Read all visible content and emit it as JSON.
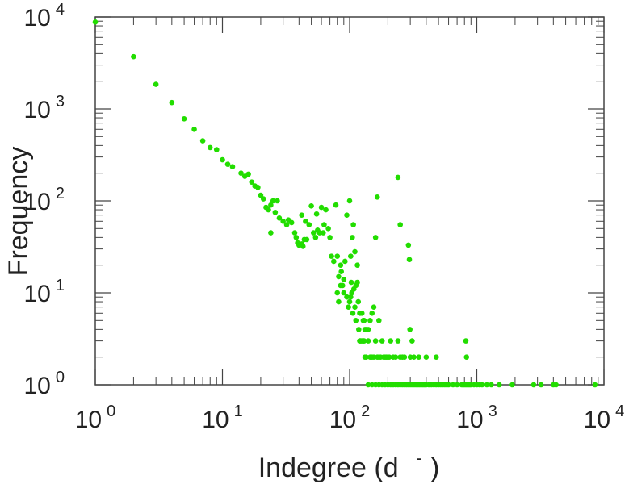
{
  "chart_data": {
    "type": "scatter",
    "title": "",
    "xlabel": "Indegree (d",
    "xlabel_superscript": "-",
    "xlabel_suffix": ")",
    "ylabel": "Frequency",
    "x_scale": "log",
    "y_scale": "log",
    "xlim": [
      1,
      10000
    ],
    "ylim": [
      1,
      10000
    ],
    "grid": false,
    "legend": "none",
    "marker_color": "#22dd00",
    "x_ticks": [
      {
        "base": "10",
        "exp": "0",
        "value": 1
      },
      {
        "base": "10",
        "exp": "1",
        "value": 10
      },
      {
        "base": "10",
        "exp": "2",
        "value": 100
      },
      {
        "base": "10",
        "exp": "3",
        "value": 1000
      },
      {
        "base": "10",
        "exp": "4",
        "value": 10000
      }
    ],
    "y_ticks": [
      {
        "base": "10",
        "exp": "0",
        "value": 1
      },
      {
        "base": "10",
        "exp": "1",
        "value": 10
      },
      {
        "base": "10",
        "exp": "2",
        "value": 100
      },
      {
        "base": "10",
        "exp": "3",
        "value": 1000
      },
      {
        "base": "10",
        "exp": "4",
        "value": 10000
      }
    ],
    "points": [
      [
        1,
        8800
      ],
      [
        2,
        3700
      ],
      [
        3,
        1850
      ],
      [
        4,
        1170
      ],
      [
        5,
        780
      ],
      [
        6,
        600
      ],
      [
        7,
        450
      ],
      [
        8,
        380
      ],
      [
        9,
        360
      ],
      [
        10,
        280
      ],
      [
        11,
        250
      ],
      [
        12,
        235
      ],
      [
        14,
        200
      ],
      [
        15,
        185
      ],
      [
        16,
        195
      ],
      [
        17,
        160
      ],
      [
        18,
        145
      ],
      [
        19,
        140
      ],
      [
        20,
        115
      ],
      [
        21,
        105
      ],
      [
        22,
        85
      ],
      [
        24,
        90
      ],
      [
        25,
        100
      ],
      [
        26,
        75
      ],
      [
        27,
        100
      ],
      [
        28,
        65
      ],
      [
        30,
        60
      ],
      [
        32,
        55
      ],
      [
        33,
        62
      ],
      [
        35,
        58
      ],
      [
        23,
        80
      ],
      [
        24,
        45
      ],
      [
        37,
        45
      ],
      [
        38,
        40
      ],
      [
        39,
        35
      ],
      [
        40,
        33
      ],
      [
        42,
        34
      ],
      [
        43,
        32
      ],
      [
        44,
        38
      ],
      [
        46,
        38
      ],
      [
        48,
        55
      ],
      [
        50,
        88
      ],
      [
        52,
        45
      ],
      [
        54,
        40
      ],
      [
        56,
        48
      ],
      [
        58,
        45
      ],
      [
        60,
        85
      ],
      [
        62,
        45
      ],
      [
        65,
        80
      ],
      [
        68,
        50
      ],
      [
        70,
        40
      ],
      [
        45,
        60
      ],
      [
        42,
        70
      ],
      [
        55,
        72
      ],
      [
        63,
        55
      ],
      [
        72,
        25
      ],
      [
        75,
        22
      ],
      [
        78,
        90
      ],
      [
        80,
        25
      ],
      [
        82,
        15
      ],
      [
        85,
        20
      ],
      [
        86,
        17
      ],
      [
        88,
        12
      ],
      [
        90,
        10
      ],
      [
        92,
        22
      ],
      [
        95,
        70
      ],
      [
        100,
        100
      ],
      [
        102,
        25
      ],
      [
        105,
        40
      ],
      [
        107,
        55
      ],
      [
        110,
        28
      ],
      [
        112,
        12
      ],
      [
        115,
        20
      ],
      [
        117,
        8
      ],
      [
        120,
        6
      ],
      [
        122,
        6
      ],
      [
        125,
        6
      ],
      [
        128,
        5
      ],
      [
        130,
        5
      ],
      [
        132,
        4
      ],
      [
        135,
        4
      ],
      [
        140,
        4
      ],
      [
        145,
        5
      ],
      [
        150,
        6
      ],
      [
        155,
        7
      ],
      [
        160,
        40
      ],
      [
        165,
        110
      ],
      [
        170,
        5
      ],
      [
        240,
        180
      ],
      [
        250,
        55
      ],
      [
        290,
        33
      ],
      [
        295,
        23
      ],
      [
        298,
        4
      ],
      [
        300,
        2
      ],
      [
        310,
        3
      ],
      [
        320,
        2
      ],
      [
        80,
        10
      ],
      [
        82,
        8
      ],
      [
        85,
        12
      ],
      [
        90,
        14
      ],
      [
        95,
        9
      ],
      [
        98,
        7
      ],
      [
        100,
        8
      ],
      [
        102,
        9
      ],
      [
        103,
        13
      ],
      [
        104,
        10
      ],
      [
        106,
        6
      ],
      [
        108,
        11
      ],
      [
        110,
        7
      ],
      [
        112,
        5
      ],
      [
        115,
        13
      ],
      [
        118,
        4
      ],
      [
        120,
        3
      ],
      [
        122,
        3
      ],
      [
        125,
        3
      ],
      [
        128,
        3
      ],
      [
        130,
        3
      ],
      [
        132,
        2
      ],
      [
        135,
        2
      ],
      [
        140,
        3
      ],
      [
        145,
        2
      ],
      [
        150,
        2
      ],
      [
        155,
        2
      ],
      [
        160,
        3
      ],
      [
        165,
        2
      ],
      [
        170,
        2
      ],
      [
        175,
        2
      ],
      [
        180,
        3
      ],
      [
        185,
        2
      ],
      [
        190,
        2
      ],
      [
        195,
        2
      ],
      [
        200,
        2
      ],
      [
        205,
        2
      ],
      [
        210,
        3
      ],
      [
        220,
        2
      ],
      [
        230,
        2
      ],
      [
        240,
        3
      ],
      [
        250,
        2
      ],
      [
        260,
        2
      ],
      [
        270,
        2
      ],
      [
        350,
        2
      ],
      [
        400,
        2
      ],
      [
        480,
        2
      ],
      [
        820,
        3
      ],
      [
        830,
        2
      ],
      [
        140,
        1
      ],
      [
        150,
        1
      ],
      [
        160,
        1
      ],
      [
        170,
        1
      ],
      [
        180,
        1
      ],
      [
        190,
        1
      ],
      [
        200,
        1
      ],
      [
        210,
        1
      ],
      [
        220,
        1
      ],
      [
        230,
        1
      ],
      [
        240,
        1
      ],
      [
        250,
        1
      ],
      [
        260,
        1
      ],
      [
        270,
        1
      ],
      [
        280,
        1
      ],
      [
        290,
        1
      ],
      [
        300,
        1
      ],
      [
        310,
        1
      ],
      [
        320,
        1
      ],
      [
        330,
        1
      ],
      [
        340,
        1
      ],
      [
        350,
        1
      ],
      [
        360,
        1
      ],
      [
        370,
        1
      ],
      [
        380,
        1
      ],
      [
        390,
        1
      ],
      [
        400,
        1
      ],
      [
        420,
        1
      ],
      [
        440,
        1
      ],
      [
        460,
        1
      ],
      [
        480,
        1
      ],
      [
        500,
        1
      ],
      [
        520,
        1
      ],
      [
        540,
        1
      ],
      [
        560,
        1
      ],
      [
        580,
        1
      ],
      [
        600,
        1
      ],
      [
        650,
        1
      ],
      [
        700,
        1
      ],
      [
        760,
        1
      ],
      [
        780,
        1
      ],
      [
        800,
        1
      ],
      [
        820,
        1
      ],
      [
        840,
        1
      ],
      [
        860,
        1
      ],
      [
        880,
        1
      ],
      [
        900,
        1
      ],
      [
        950,
        1
      ],
      [
        1000,
        1
      ],
      [
        1050,
        1
      ],
      [
        1100,
        1
      ],
      [
        1200,
        1
      ],
      [
        1300,
        1
      ],
      [
        1500,
        1
      ],
      [
        1900,
        1
      ],
      [
        2800,
        1
      ],
      [
        3200,
        1
      ],
      [
        4000,
        1
      ],
      [
        4200,
        1
      ],
      [
        8500,
        1
      ]
    ]
  }
}
